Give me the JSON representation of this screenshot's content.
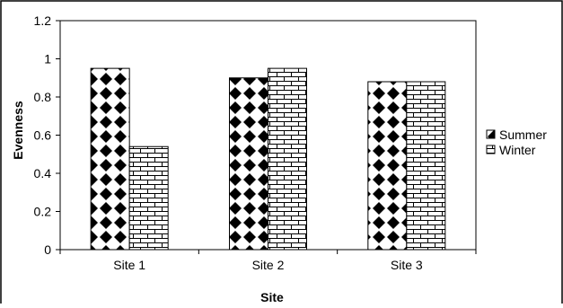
{
  "chart_data": {
    "type": "bar",
    "categories": [
      "Site 1",
      "Site 2",
      "Site 3"
    ],
    "series": [
      {
        "name": "Summer",
        "values": [
          0.95,
          0.9,
          0.88
        ],
        "pattern": "checker"
      },
      {
        "name": "Winter",
        "values": [
          0.54,
          0.95,
          0.88
        ],
        "pattern": "brick"
      }
    ],
    "xlabel": "Site",
    "ylabel": "Evenness",
    "ylim": [
      0,
      1.2
    ],
    "yticks": [
      "0",
      "0.2",
      "0.4",
      "0.6",
      "0.8",
      "1",
      "1.2"
    ],
    "grid": false,
    "legend": "right",
    "colors": {
      "bar_fill": "#ffffff",
      "bar_stroke": "#000000",
      "axis": "#000000"
    }
  }
}
